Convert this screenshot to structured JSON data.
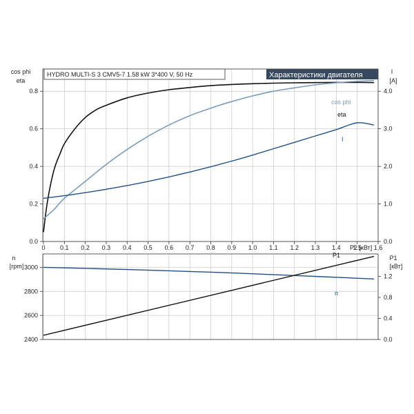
{
  "header": {
    "title": "HYDRO MULTI-S 3 CMV5-7   1.58 kW   3*400 V, 50 Hz",
    "badge": "Характеристики двигателя"
  },
  "colors": {
    "eta": "#111111",
    "cos_phi": "#7b9cb8",
    "current": "#1f4f85",
    "speed": "#1f4f85",
    "p1": "#111111",
    "badge_bg": "#37475c",
    "badge_text": "#ffffff"
  },
  "chart_data": [
    {
      "type": "line",
      "xlabel": "P2 [кВт]",
      "xlim": [
        0,
        1.6
      ],
      "x_ticks": [
        "0",
        "0.1",
        "0.2",
        "0.3",
        "0.4",
        "0.5",
        "0.6",
        "0.7",
        "0.8",
        "0.9",
        "1.0",
        "1.1",
        "1.2",
        "1.3",
        "1.4",
        "1.5",
        "1,6"
      ],
      "ylabel_left_1": "cos phi",
      "ylabel_left_2": "eta",
      "ylim_left": [
        0,
        0.9
      ],
      "y_ticks_left": [
        "0.0",
        "0.2",
        "0.4",
        "0.6",
        "0.8"
      ],
      "ylabel_right_1": "I",
      "ylabel_right_2": "[A]",
      "ylim_right": [
        0,
        4.5
      ],
      "y_ticks_right": [
        "0.0",
        "1.0",
        "2.0",
        "3.0",
        "4.0"
      ],
      "grid": true,
      "series": [
        {
          "name": "eta",
          "axis": "left",
          "x": [
            0,
            0.02,
            0.05,
            0.08,
            0.1,
            0.15,
            0.2,
            0.25,
            0.3,
            0.4,
            0.5,
            0.6,
            0.7,
            0.8,
            0.9,
            1.0,
            1.1,
            1.2,
            1.3,
            1.4,
            1.5,
            1.58
          ],
          "y": [
            0.05,
            0.22,
            0.38,
            0.47,
            0.52,
            0.6,
            0.66,
            0.7,
            0.725,
            0.765,
            0.79,
            0.808,
            0.82,
            0.83,
            0.836,
            0.84,
            0.843,
            0.845,
            0.846,
            0.847,
            0.847,
            0.846
          ]
        },
        {
          "name": "cos phi",
          "axis": "left",
          "x": [
            0,
            0.05,
            0.1,
            0.2,
            0.3,
            0.4,
            0.5,
            0.6,
            0.7,
            0.8,
            0.9,
            1.0,
            1.1,
            1.2,
            1.3,
            1.4,
            1.5,
            1.58
          ],
          "y": [
            0.12,
            0.17,
            0.23,
            0.32,
            0.41,
            0.49,
            0.56,
            0.62,
            0.67,
            0.71,
            0.745,
            0.775,
            0.8,
            0.818,
            0.834,
            0.845,
            0.853,
            0.857
          ]
        },
        {
          "name": "I",
          "axis": "right",
          "x": [
            0,
            0.1,
            0.2,
            0.3,
            0.4,
            0.5,
            0.6,
            0.7,
            0.8,
            0.9,
            1.0,
            1.1,
            1.2,
            1.3,
            1.4,
            1.5,
            1.58
          ],
          "y": [
            1.15,
            1.22,
            1.3,
            1.39,
            1.49,
            1.6,
            1.72,
            1.85,
            1.99,
            2.14,
            2.3,
            2.47,
            2.64,
            2.81,
            2.98,
            3.16,
            3.1
          ]
        }
      ]
    },
    {
      "type": "line",
      "xlim": [
        0,
        1.6
      ],
      "ylabel_left_1": "n",
      "ylabel_left_2": "[rpm]",
      "ylim_left": [
        2400,
        3100
      ],
      "y_ticks_left": [
        "2400",
        "2600",
        "2800",
        "3000"
      ],
      "ylabel_right_1": "P1",
      "ylabel_right_2": "[кВт]",
      "ylim_right": [
        0,
        1.6
      ],
      "y_ticks_right": [
        "0.0",
        "0.4",
        "0.8",
        "1.2"
      ],
      "grid": true,
      "series": [
        {
          "name": "n",
          "axis": "left",
          "x": [
            0,
            0.4,
            0.8,
            1.2,
            1.58
          ],
          "y": [
            3000,
            2982,
            2960,
            2932,
            2903
          ]
        },
        {
          "name": "P1",
          "axis": "right",
          "x": [
            0,
            1.58
          ],
          "y": [
            0.08,
            1.58
          ]
        }
      ]
    }
  ]
}
